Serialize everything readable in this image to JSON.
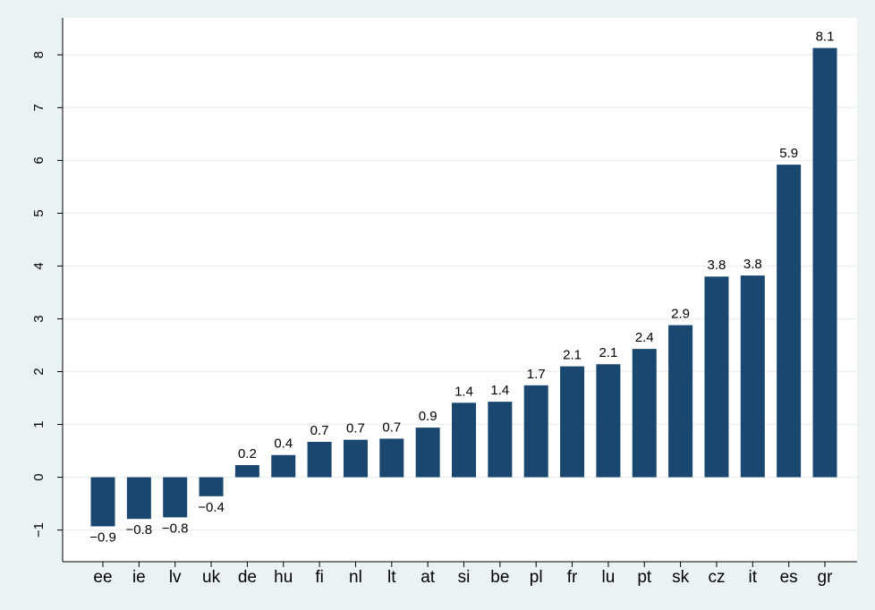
{
  "chart_data": {
    "type": "bar",
    "categories": [
      "ee",
      "ie",
      "lv",
      "uk",
      "de",
      "hu",
      "fi",
      "nl",
      "lt",
      "at",
      "si",
      "be",
      "pl",
      "fr",
      "lu",
      "pt",
      "sk",
      "cz",
      "it",
      "es",
      "gr"
    ],
    "values": [
      -0.93,
      -0.79,
      -0.76,
      -0.36,
      0.23,
      0.42,
      0.67,
      0.71,
      0.73,
      0.94,
      1.41,
      1.43,
      1.74,
      2.1,
      2.14,
      2.43,
      2.88,
      3.8,
      3.82,
      5.92,
      8.13
    ],
    "value_labels": [
      "−0.9",
      "−0.8",
      "−0.8",
      "−0.4",
      "0.2",
      "0.4",
      "0.7",
      "0.7",
      "0.7",
      "0.9",
      "1.4",
      "1.4",
      "1.7",
      "2.1",
      "2.1",
      "2.4",
      "2.9",
      "3.8",
      "3.8",
      "5.9",
      "8.1"
    ],
    "color": "#1a476f",
    "ylim": [
      -1.6,
      8.7
    ],
    "yticks": [
      {
        "value": -1,
        "label": "−1"
      },
      0,
      1,
      2,
      3,
      4,
      5,
      6,
      7,
      8
    ],
    "grid": true
  }
}
